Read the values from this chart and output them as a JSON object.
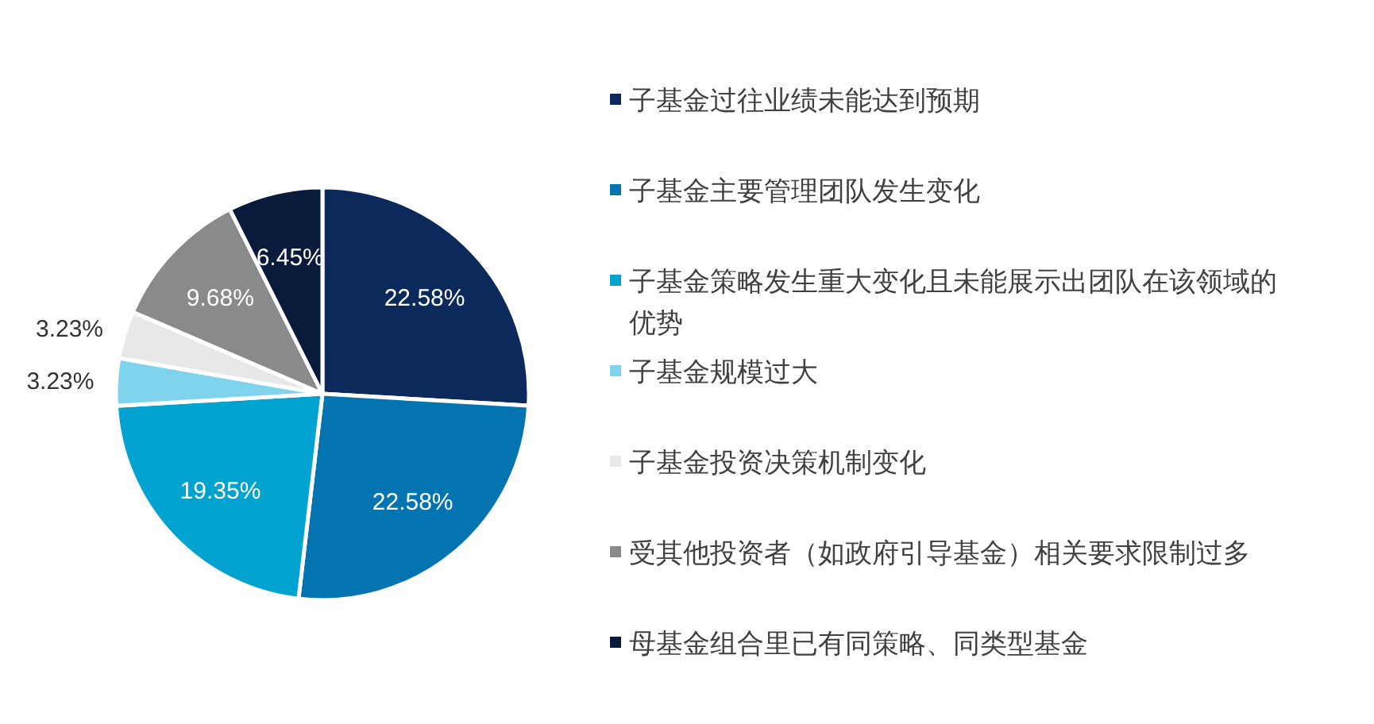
{
  "chart_data": {
    "type": "pie",
    "categories": [
      "子基金过往业绩未能达到预期",
      "子基金主要管理团队发生变化",
      "子基金策略发生重大变化且未能展示出团队在该领域的优势",
      "子基金规模过大",
      "子基金投资决策机制变化",
      "受其他投资者（如政府引导基金）相关要求限制过多",
      "母基金组合里已有同策略、同类型基金"
    ],
    "values": [
      22.58,
      22.58,
      19.35,
      3.23,
      3.23,
      9.68,
      6.45
    ],
    "colors": [
      "#0b2a5b",
      "#0474b0",
      "#00a2cf",
      "#7fd3ec",
      "#e8e8e8",
      "#8a8a8a",
      "#0a1a3a"
    ],
    "value_labels": [
      "22.58%",
      "22.58%",
      "19.35%",
      "3.23%",
      "3.23%",
      "9.68%",
      "6.45%"
    ],
    "legend": "right"
  }
}
